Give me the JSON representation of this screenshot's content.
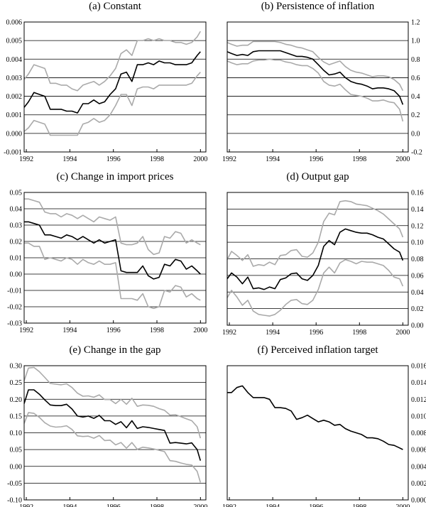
{
  "chart_data": [
    {
      "type": "line",
      "title": "(a) Constant",
      "yaxis_side": "left",
      "ylim": [
        -0.001,
        0.006
      ],
      "yticks": [
        "-0.001",
        "0.000",
        "0.001",
        "0.002",
        "0.003",
        "0.004",
        "0.005",
        "0.006"
      ],
      "xlim": [
        1991.9,
        2000.25
      ],
      "xticks": [
        "1992",
        "1994",
        "1996",
        "1998",
        "2000"
      ],
      "grid": "horizontal",
      "x": [
        1991.9,
        1992.1,
        1992.35,
        1992.6,
        1992.85,
        1993.1,
        1993.35,
        1993.6,
        1993.85,
        1994.1,
        1994.35,
        1994.6,
        1994.85,
        1995.1,
        1995.35,
        1995.6,
        1995.85,
        1996.1,
        1996.35,
        1996.6,
        1996.85,
        1997.1,
        1997.35,
        1997.6,
        1997.85,
        1998.1,
        1998.35,
        1998.6,
        1998.85,
        1999.1,
        1999.35,
        1999.6,
        1999.85,
        2000.0
      ],
      "series": [
        {
          "color": "#000000",
          "values": [
            0.0014,
            0.0017,
            0.0022,
            0.0021,
            0.002,
            0.0013,
            0.0013,
            0.0013,
            0.0012,
            0.0012,
            0.0011,
            0.0016,
            0.0016,
            0.0018,
            0.0016,
            0.0017,
            0.0021,
            0.0024,
            0.0032,
            0.0033,
            0.0028,
            0.0037,
            0.0037,
            0.0038,
            0.0037,
            0.0039,
            0.0038,
            0.0038,
            0.0037,
            0.0037,
            0.0037,
            0.0038,
            0.0042,
            0.0044
          ]
        },
        {
          "color": "#aaaaaa",
          "values": [
            0.0029,
            0.0032,
            0.0037,
            0.0036,
            0.0035,
            0.0027,
            0.0027,
            0.0026,
            0.0026,
            0.0024,
            0.0023,
            0.0026,
            0.0027,
            0.0028,
            0.0026,
            0.0028,
            0.0031,
            0.0035,
            0.0043,
            0.0045,
            0.0042,
            0.005,
            0.005,
            0.0051,
            0.005,
            0.0051,
            0.005,
            0.005,
            0.0049,
            0.0049,
            0.0048,
            0.0049,
            0.0052,
            0.0055
          ]
        },
        {
          "color": "#aaaaaa",
          "values": [
            0.0001,
            0.0003,
            0.0007,
            0.0006,
            0.0005,
            -0.0001,
            -0.0001,
            -0.0001,
            -0.0001,
            -0.0001,
            -0.0001,
            0.0005,
            0.0006,
            0.0008,
            0.0006,
            0.0007,
            0.001,
            0.0015,
            0.0021,
            0.0021,
            0.0015,
            0.0024,
            0.0025,
            0.0025,
            0.0024,
            0.0026,
            0.0026,
            0.0026,
            0.0026,
            0.0026,
            0.0026,
            0.0027,
            0.0031,
            0.0033
          ]
        }
      ]
    },
    {
      "type": "line",
      "title": "(b) Persistence of inflation",
      "yaxis_side": "right",
      "ylim": [
        -0.2,
        1.2
      ],
      "yticks": [
        "-0.2",
        "0.0",
        "0.2",
        "0.4",
        "0.6",
        "0.8",
        "1.0",
        "1.2"
      ],
      "xlim": [
        1991.9,
        2000.25
      ],
      "xticks": [
        "1992",
        "1994",
        "1996",
        "1998",
        "2000"
      ],
      "grid": "horizontal",
      "x": [
        1991.9,
        1992.1,
        1992.35,
        1992.6,
        1992.85,
        1993.1,
        1993.35,
        1993.6,
        1993.85,
        1994.1,
        1994.35,
        1994.6,
        1994.85,
        1995.1,
        1995.35,
        1995.6,
        1995.85,
        1996.1,
        1996.35,
        1996.6,
        1996.85,
        1997.1,
        1997.35,
        1997.6,
        1997.85,
        1998.1,
        1998.35,
        1998.6,
        1998.85,
        1999.1,
        1999.35,
        1999.6,
        1999.85,
        2000.0
      ],
      "series": [
        {
          "color": "#000000",
          "values": [
            0.88,
            0.86,
            0.84,
            0.85,
            0.84,
            0.88,
            0.89,
            0.89,
            0.89,
            0.89,
            0.89,
            0.87,
            0.85,
            0.83,
            0.83,
            0.82,
            0.8,
            0.74,
            0.68,
            0.63,
            0.64,
            0.66,
            0.6,
            0.56,
            0.54,
            0.53,
            0.51,
            0.48,
            0.49,
            0.49,
            0.48,
            0.46,
            0.4,
            0.31
          ]
        },
        {
          "color": "#aaaaaa",
          "values": [
            0.98,
            0.96,
            0.94,
            0.95,
            0.95,
            0.99,
            0.99,
            0.99,
            0.99,
            0.99,
            0.98,
            0.96,
            0.95,
            0.93,
            0.92,
            0.9,
            0.88,
            0.82,
            0.77,
            0.74,
            0.76,
            0.78,
            0.72,
            0.68,
            0.66,
            0.65,
            0.63,
            0.61,
            0.62,
            0.62,
            0.61,
            0.58,
            0.53,
            0.46
          ]
        },
        {
          "color": "#aaaaaa",
          "values": [
            0.78,
            0.76,
            0.74,
            0.75,
            0.75,
            0.78,
            0.79,
            0.79,
            0.8,
            0.79,
            0.79,
            0.77,
            0.76,
            0.74,
            0.73,
            0.73,
            0.7,
            0.65,
            0.56,
            0.52,
            0.51,
            0.53,
            0.47,
            0.42,
            0.41,
            0.4,
            0.38,
            0.35,
            0.35,
            0.36,
            0.34,
            0.33,
            0.26,
            0.13
          ]
        }
      ]
    },
    {
      "type": "line",
      "title": "(c) Change in import prices",
      "yaxis_side": "left",
      "ylim": [
        -0.03,
        0.05
      ],
      "yticks": [
        "-0.03",
        "-0.02",
        "-0.01",
        "0.00",
        "0.01",
        "0.02",
        "0.03",
        "0.04",
        "0.05"
      ],
      "xlim": [
        1991.9,
        2000.25
      ],
      "xticks": [
        "1992",
        "1994",
        "1996",
        "1998",
        "2000"
      ],
      "grid": "horizontal",
      "x": [
        1991.9,
        1992.1,
        1992.35,
        1992.6,
        1992.85,
        1993.1,
        1993.35,
        1993.6,
        1993.85,
        1994.1,
        1994.35,
        1994.6,
        1994.85,
        1995.1,
        1995.35,
        1995.6,
        1995.85,
        1996.1,
        1996.35,
        1996.6,
        1996.85,
        1997.1,
        1997.35,
        1997.6,
        1997.85,
        1998.1,
        1998.35,
        1998.6,
        1998.85,
        1999.1,
        1999.35,
        1999.6,
        1999.85,
        2000.0
      ],
      "series": [
        {
          "color": "#000000",
          "values": [
            0.032,
            0.032,
            0.031,
            0.03,
            0.024,
            0.024,
            0.023,
            0.022,
            0.024,
            0.023,
            0.021,
            0.023,
            0.021,
            0.019,
            0.021,
            0.019,
            0.02,
            0.021,
            0.002,
            0.001,
            0.001,
            0.001,
            0.005,
            -0.001,
            -0.003,
            -0.002,
            0.006,
            0.005,
            0.009,
            0.008,
            0.003,
            0.005,
            0.002,
            0.0
          ]
        },
        {
          "color": "#aaaaaa",
          "values": [
            0.046,
            0.046,
            0.045,
            0.044,
            0.038,
            0.037,
            0.037,
            0.035,
            0.037,
            0.036,
            0.034,
            0.036,
            0.034,
            0.032,
            0.035,
            0.034,
            0.033,
            0.035,
            0.019,
            0.018,
            0.018,
            0.019,
            0.023,
            0.015,
            0.012,
            0.013,
            0.023,
            0.022,
            0.026,
            0.025,
            0.019,
            0.021,
            0.019,
            0.018
          ]
        },
        {
          "color": "#aaaaaa",
          "values": [
            0.019,
            0.019,
            0.017,
            0.017,
            0.009,
            0.01,
            0.009,
            0.008,
            0.01,
            0.009,
            0.006,
            0.009,
            0.007,
            0.006,
            0.008,
            0.006,
            0.006,
            0.007,
            -0.015,
            -0.015,
            -0.015,
            -0.016,
            -0.012,
            -0.02,
            -0.021,
            -0.02,
            -0.01,
            -0.011,
            -0.007,
            -0.008,
            -0.014,
            -0.012,
            -0.015,
            -0.016
          ]
        }
      ]
    },
    {
      "type": "line",
      "title": "(d) Output gap",
      "yaxis_side": "right",
      "ylim": [
        0.0,
        0.16
      ],
      "yticks": [
        "0.00",
        "0.02",
        "0.04",
        "0.06",
        "0.08",
        "0.10",
        "0.12",
        "0.14",
        "0.16"
      ],
      "xlim": [
        1991.9,
        2000.25
      ],
      "xticks": [
        "1992",
        "1994",
        "1996",
        "1998",
        "2000"
      ],
      "grid": "horizontal",
      "x": [
        1991.9,
        1992.1,
        1992.35,
        1992.6,
        1992.85,
        1993.1,
        1993.35,
        1993.6,
        1993.85,
        1994.1,
        1994.35,
        1994.6,
        1994.85,
        1995.1,
        1995.35,
        1995.6,
        1995.85,
        1996.1,
        1996.35,
        1996.6,
        1996.85,
        1997.1,
        1997.35,
        1997.6,
        1997.85,
        1998.1,
        1998.35,
        1998.6,
        1998.85,
        1999.1,
        1999.35,
        1999.6,
        1999.85,
        2000.0
      ],
      "series": [
        {
          "color": "#000000",
          "values": [
            0.056,
            0.063,
            0.058,
            0.05,
            0.058,
            0.044,
            0.045,
            0.043,
            0.046,
            0.044,
            0.055,
            0.057,
            0.062,
            0.063,
            0.056,
            0.054,
            0.06,
            0.072,
            0.095,
            0.102,
            0.097,
            0.112,
            0.116,
            0.114,
            0.112,
            0.111,
            0.111,
            0.109,
            0.106,
            0.104,
            0.098,
            0.092,
            0.088,
            0.078
          ]
        },
        {
          "color": "#aaaaaa",
          "values": [
            0.079,
            0.089,
            0.084,
            0.078,
            0.085,
            0.071,
            0.073,
            0.072,
            0.076,
            0.073,
            0.084,
            0.085,
            0.09,
            0.091,
            0.083,
            0.082,
            0.087,
            0.1,
            0.125,
            0.135,
            0.133,
            0.149,
            0.15,
            0.149,
            0.146,
            0.145,
            0.144,
            0.141,
            0.138,
            0.134,
            0.128,
            0.122,
            0.116,
            0.106
          ]
        },
        {
          "color": "#aaaaaa",
          "values": [
            0.033,
            0.042,
            0.034,
            0.024,
            0.03,
            0.017,
            0.013,
            0.012,
            0.011,
            0.013,
            0.018,
            0.025,
            0.03,
            0.031,
            0.026,
            0.025,
            0.03,
            0.043,
            0.063,
            0.07,
            0.063,
            0.075,
            0.079,
            0.077,
            0.074,
            0.077,
            0.076,
            0.076,
            0.074,
            0.072,
            0.066,
            0.058,
            0.056,
            0.047
          ]
        }
      ]
    },
    {
      "type": "line",
      "title": "(e) Change in the gap",
      "yaxis_side": "left",
      "ylim": [
        -0.1,
        0.3
      ],
      "yticks": [
        "-0.10",
        "-0.05",
        "0.00",
        "0.05",
        "0.10",
        "0.15",
        "0.20",
        "0.25",
        "0.30"
      ],
      "xlim": [
        1991.9,
        2000.25
      ],
      "xticks": [
        "1992",
        "1994",
        "1996",
        "1998",
        "2000"
      ],
      "grid": "horizontal",
      "x": [
        1991.9,
        1992.1,
        1992.35,
        1992.6,
        1992.85,
        1993.1,
        1993.35,
        1993.6,
        1993.85,
        1994.1,
        1994.35,
        1994.6,
        1994.85,
        1995.1,
        1995.35,
        1995.6,
        1995.85,
        1996.1,
        1996.35,
        1996.6,
        1996.85,
        1997.1,
        1997.35,
        1997.6,
        1997.85,
        1998.1,
        1998.35,
        1998.6,
        1998.85,
        1999.1,
        1999.35,
        1999.6,
        1999.85,
        2000.0
      ],
      "series": [
        {
          "color": "#000000",
          "values": [
            0.187,
            0.228,
            0.228,
            0.215,
            0.198,
            0.183,
            0.181,
            0.181,
            0.185,
            0.171,
            0.15,
            0.147,
            0.15,
            0.143,
            0.152,
            0.136,
            0.136,
            0.125,
            0.133,
            0.115,
            0.136,
            0.113,
            0.118,
            0.116,
            0.113,
            0.11,
            0.107,
            0.069,
            0.071,
            0.069,
            0.067,
            0.07,
            0.05,
            0.017
          ]
        },
        {
          "color": "#aaaaaa",
          "values": [
            0.255,
            0.293,
            0.295,
            0.282,
            0.265,
            0.247,
            0.245,
            0.243,
            0.246,
            0.235,
            0.218,
            0.209,
            0.21,
            0.206,
            0.213,
            0.199,
            0.199,
            0.187,
            0.2,
            0.185,
            0.203,
            0.179,
            0.183,
            0.182,
            0.179,
            0.172,
            0.167,
            0.153,
            0.154,
            0.148,
            0.142,
            0.136,
            0.118,
            0.084
          ]
        },
        {
          "color": "#aaaaaa",
          "values": [
            0.128,
            0.16,
            0.158,
            0.146,
            0.13,
            0.12,
            0.117,
            0.118,
            0.121,
            0.11,
            0.091,
            0.089,
            0.09,
            0.084,
            0.092,
            0.077,
            0.078,
            0.064,
            0.071,
            0.054,
            0.071,
            0.051,
            0.057,
            0.055,
            0.052,
            0.048,
            0.044,
            0.017,
            0.015,
            0.01,
            0.006,
            0.004,
            -0.015,
            -0.048
          ]
        }
      ]
    },
    {
      "type": "line",
      "title": "(f) Perceived inflation target",
      "yaxis_side": "right",
      "ylim": [
        0.0,
        0.016
      ],
      "yticks": [
        "0.000",
        "0.002",
        "0.004",
        "0.006",
        "0.008",
        "0.010",
        "0.012",
        "0.014",
        "0.016"
      ],
      "xlim": [
        1991.9,
        2000.25
      ],
      "xticks": [
        "1992",
        "1994",
        "1996",
        "1998",
        "2000"
      ],
      "grid": "none",
      "x": [
        1991.9,
        1992.1,
        1992.35,
        1992.6,
        1992.85,
        1993.1,
        1993.35,
        1993.6,
        1993.85,
        1994.1,
        1994.35,
        1994.6,
        1994.85,
        1995.1,
        1995.35,
        1995.6,
        1995.85,
        1996.1,
        1996.35,
        1996.6,
        1996.85,
        1997.1,
        1997.35,
        1997.6,
        1997.85,
        1998.1,
        1998.35,
        1998.6,
        1998.85,
        1999.1,
        1999.35,
        1999.6,
        1999.85,
        2000.0
      ],
      "series": [
        {
          "color": "#000000",
          "values": [
            0.0128,
            0.0128,
            0.0134,
            0.0136,
            0.0128,
            0.0122,
            0.0122,
            0.0122,
            0.012,
            0.011,
            0.011,
            0.0109,
            0.0106,
            0.0096,
            0.0098,
            0.0101,
            0.0097,
            0.0093,
            0.0095,
            0.0093,
            0.0089,
            0.009,
            0.0085,
            0.0082,
            0.008,
            0.0078,
            0.0074,
            0.0074,
            0.0073,
            0.007,
            0.0066,
            0.0065,
            0.0062,
            0.006
          ]
        }
      ]
    }
  ]
}
